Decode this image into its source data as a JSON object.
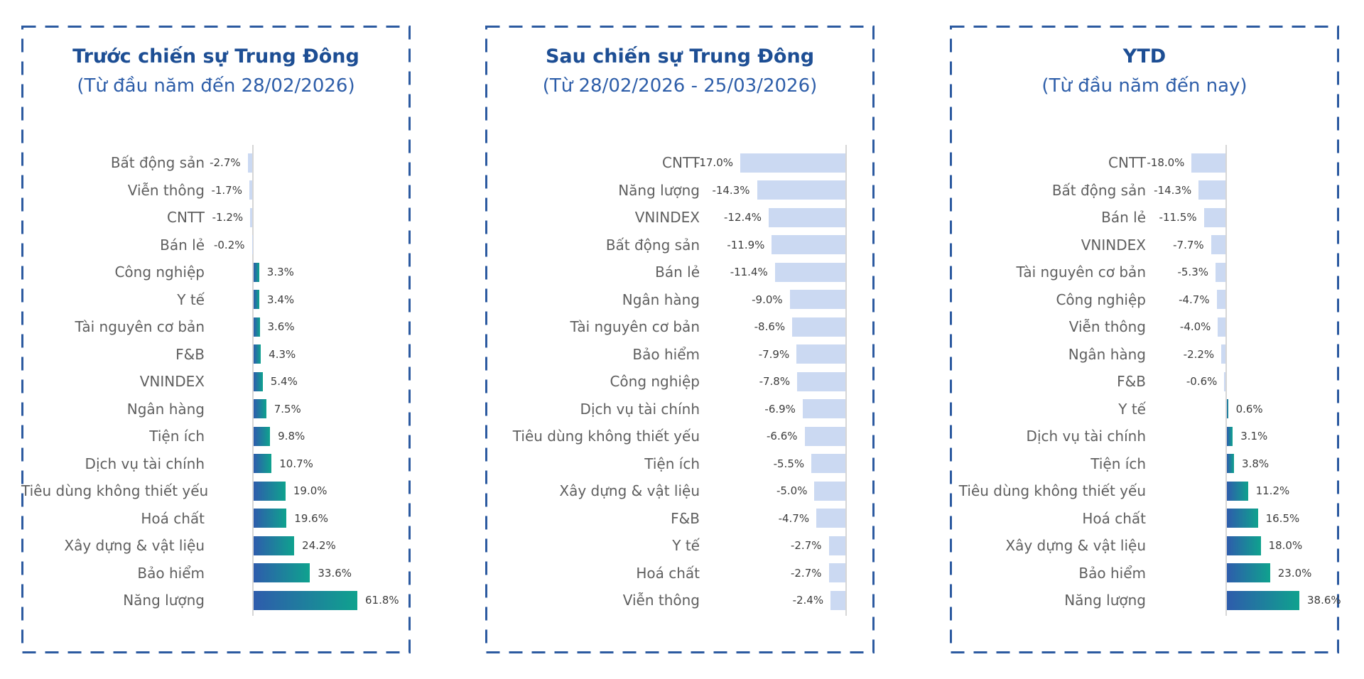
{
  "chart_data": [
    {
      "type": "bar",
      "orientation": "horizontal",
      "title": "Trước chiến sự Trung Đông",
      "subtitle": "(Từ đầu năm đến 28/02/2026)",
      "value_suffix": "%",
      "categories": [
        "Bất động sản",
        "Viễn thông",
        "CNTT",
        "Bán lẻ",
        "Công nghiệp",
        "Y tế",
        "Tài nguyên cơ bản",
        "F&B",
        "VNINDEX",
        "Ngân hàng",
        "Tiện ích",
        "Dịch vụ tài chính",
        "Tiêu dùng không thiết yếu",
        "Hoá chất",
        "Xây dựng & vật liệu",
        "Bảo hiểm",
        "Năng lượng"
      ],
      "values": [
        -2.7,
        -1.7,
        -1.2,
        -0.2,
        3.3,
        3.4,
        3.6,
        4.3,
        5.4,
        7.5,
        9.8,
        10.7,
        19.0,
        19.6,
        24.2,
        33.6,
        61.8
      ],
      "xlim": [
        -5,
        65
      ],
      "grid": false,
      "legend": false
    },
    {
      "type": "bar",
      "orientation": "horizontal",
      "title": "Sau chiến sự Trung Đông",
      "subtitle": "(Từ 28/02/2026 - 25/03/2026)",
      "value_suffix": "%",
      "categories": [
        "CNTT",
        "Năng lượng",
        "VNINDEX",
        "Bất động sản",
        "Bán lẻ",
        "Ngân hàng",
        "Tài nguyên cơ bản",
        "Bảo hiểm",
        "Công nghiệp",
        "Dịch vụ tài chính",
        "Tiêu dùng không thiết yếu",
        "Tiện ích",
        "Xây dựng & vật liệu",
        "F&B",
        "Y tế",
        "Hoá chất",
        "Viễn thông"
      ],
      "values": [
        -17.0,
        -14.3,
        -12.4,
        -11.9,
        -11.4,
        -9.0,
        -8.6,
        -7.9,
        -7.8,
        -6.9,
        -6.6,
        -5.5,
        -5.0,
        -4.7,
        -2.7,
        -2.7,
        -2.4
      ],
      "xlim": [
        -18,
        0
      ],
      "grid": false,
      "legend": false
    },
    {
      "type": "bar",
      "orientation": "horizontal",
      "title": "YTD",
      "subtitle": "(Từ đầu năm đến nay)",
      "value_suffix": "%",
      "categories": [
        "CNTT",
        "Bất động sản",
        "Bán lẻ",
        "VNINDEX",
        "Tài nguyên cơ bản",
        "Công nghiệp",
        "Viễn thông",
        "Ngân hàng",
        "F&B",
        "Y tế",
        "Dịch vụ tài chính",
        "Tiện ích",
        "Tiêu dùng không thiết yếu",
        "Hoá chất",
        "Xây dựng & vật liệu",
        "Bảo hiểm",
        "Năng lượng"
      ],
      "values": [
        -18.0,
        -14.3,
        -11.5,
        -7.7,
        -5.3,
        -4.7,
        -4.0,
        -2.2,
        -0.6,
        0.6,
        3.1,
        3.8,
        11.2,
        16.5,
        18.0,
        23.0,
        38.6
      ],
      "xlim": [
        -20,
        40
      ],
      "grid": false,
      "legend": false
    }
  ],
  "colors": {
    "border_dashed": "#2c5aa0",
    "title": "#1d4e94",
    "subtitle": "#2e5ea9",
    "category_label": "#5f5f5f",
    "value_label": "#3d3d3d",
    "negative_bar": "#cbd9f2",
    "positive_bar_gradient_start": "#2e5cac",
    "positive_bar_gradient_end": "#0fa28e",
    "axis_line": "#d6d6d6",
    "background": "#ffffff"
  }
}
